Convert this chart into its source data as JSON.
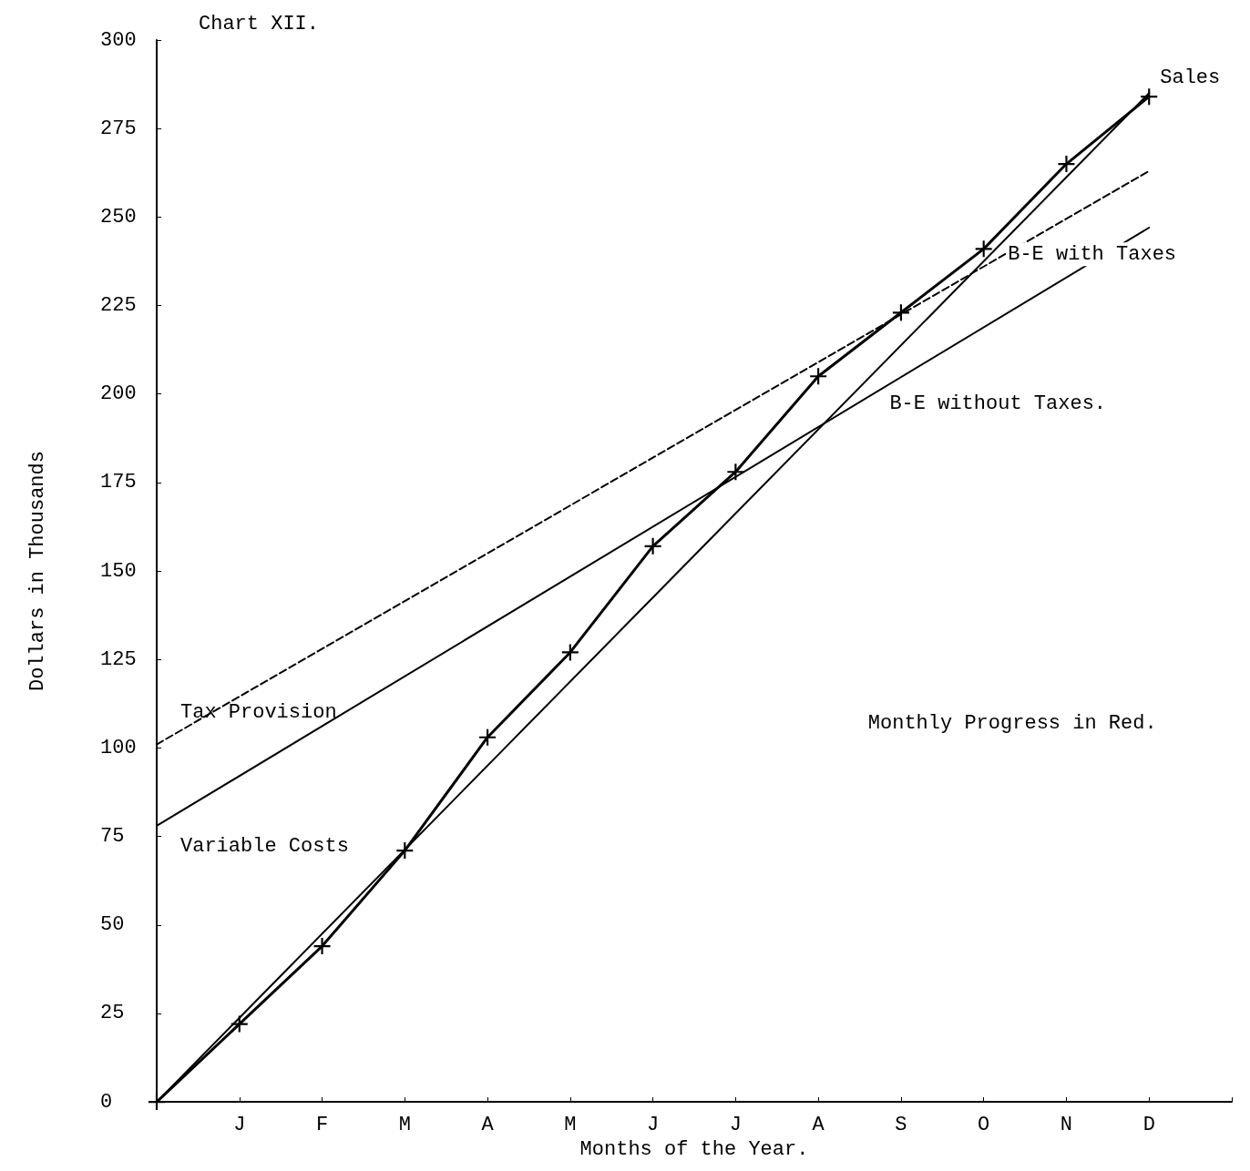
{
  "chart_data": {
    "type": "line",
    "title": "Chart XII.",
    "xlabel": "Months of the Year.",
    "ylabel": "Dollars in Thousands",
    "categories": [
      null,
      "J",
      "F",
      "M",
      "A",
      "M",
      "J",
      "J",
      "A",
      "S",
      "O",
      "N",
      "D",
      null
    ],
    "ylim": [
      0,
      300
    ],
    "yticks": [
      0,
      25,
      50,
      75,
      100,
      125,
      150,
      175,
      200,
      225,
      250,
      275,
      300
    ],
    "grid": false,
    "legend": false,
    "marker": "none",
    "line_style": "solid",
    "series": [
      {
        "name": "Sales",
        "color": "#000000",
        "values": [
          0,
          null,
          null,
          null,
          null,
          null,
          null,
          null,
          null,
          null,
          null,
          null,
          285,
          null
        ]
      },
      {
        "name": "Variable Costs",
        "color": "#000000",
        "values": [
          78,
          null,
          null,
          null,
          null,
          null,
          null,
          null,
          null,
          null,
          null,
          null,
          247,
          null
        ]
      },
      {
        "name": "Tax Provision",
        "color": "#000000",
        "line_style": "dashed",
        "values": [
          101,
          null,
          null,
          null,
          null,
          null,
          null,
          null,
          null,
          null,
          null,
          null,
          263,
          null
        ]
      },
      {
        "color": "#000000",
        "marker": "cross",
        "values": [
          0,
          22,
          44,
          71,
          103,
          127,
          157,
          178,
          205,
          223,
          241,
          265,
          284,
          null
        ]
      }
    ],
    "annotations": [
      "B-E with Taxes",
      "B-E without Taxes.",
      "Monthly Progress in Red."
    ]
  }
}
